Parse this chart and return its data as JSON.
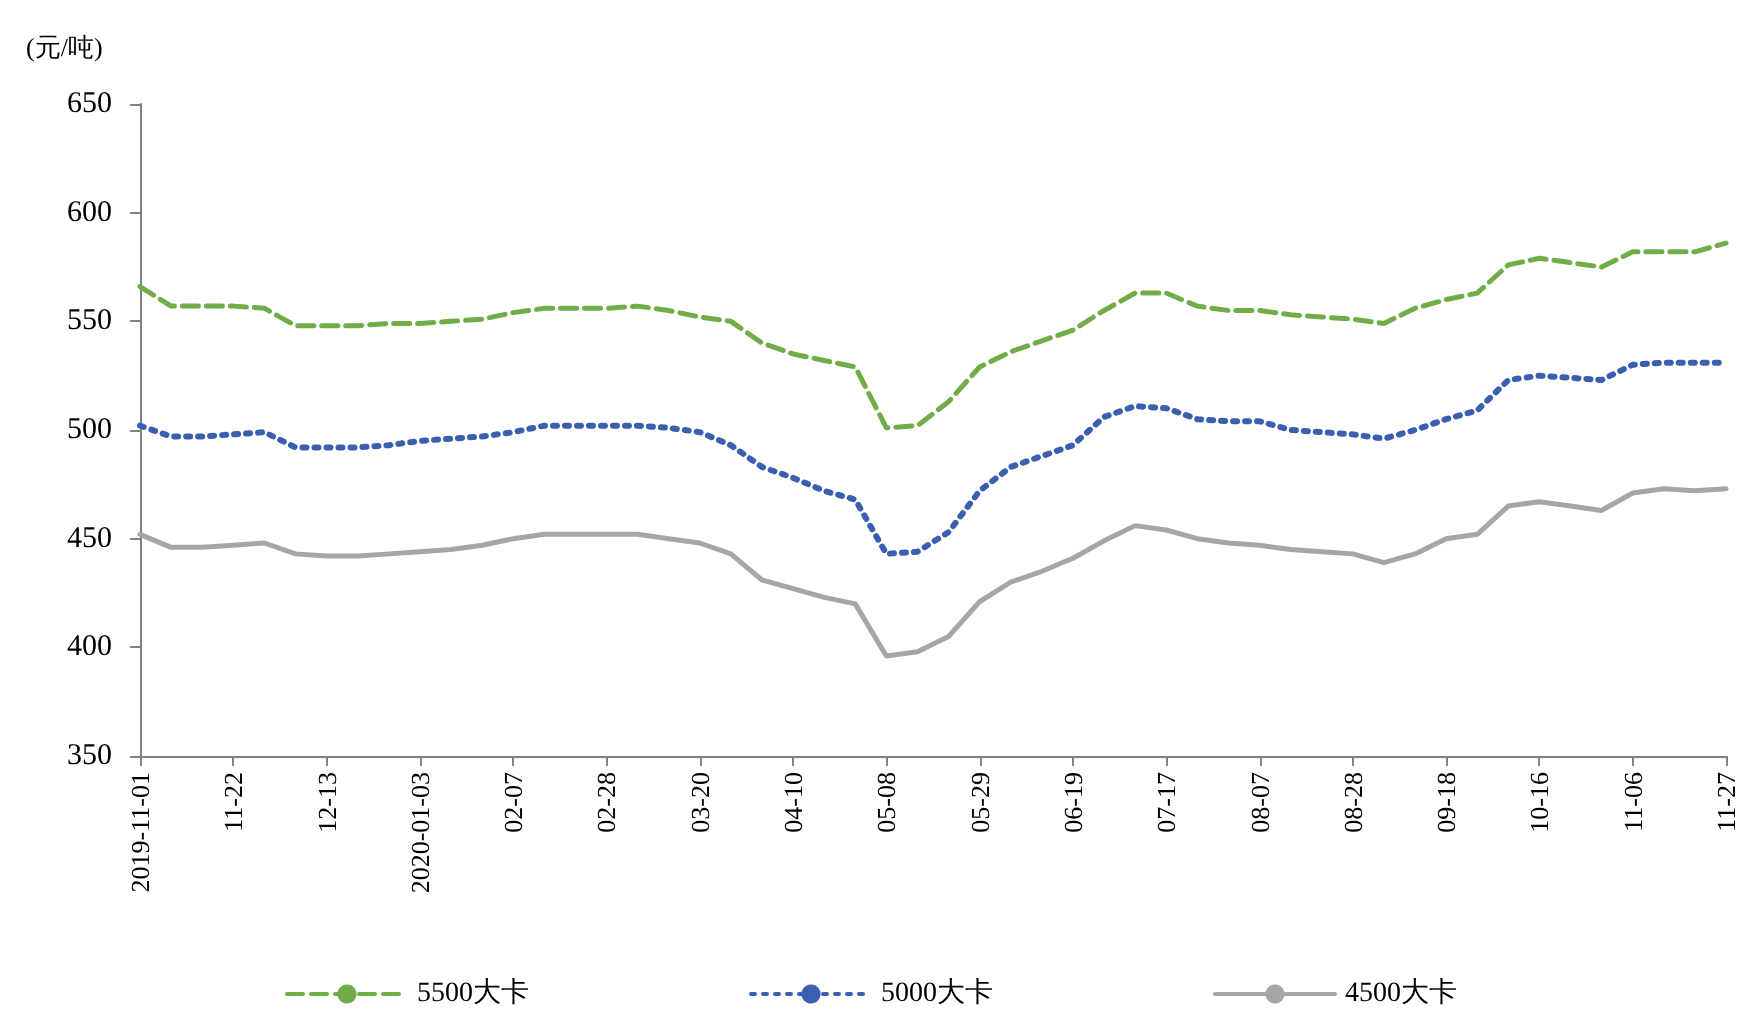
{
  "chart_data": {
    "type": "line",
    "ylabel": "(元/吨)",
    "categories": [
      "2019-11-01",
      null,
      null,
      "11-22",
      null,
      null,
      "12-13",
      null,
      null,
      "2020-01-03",
      null,
      null,
      "02-07",
      null,
      null,
      "02-28",
      null,
      null,
      "03-20",
      null,
      null,
      "04-10",
      null,
      null,
      "05-08",
      null,
      null,
      "05-29",
      null,
      null,
      "06-19",
      null,
      null,
      "07-17",
      null,
      null,
      "08-07",
      null,
      null,
      "08-28",
      null,
      null,
      "09-18",
      null,
      null,
      "10-16",
      null,
      null,
      "11-06",
      null,
      null,
      "11-27"
    ],
    "series": [
      {
        "name": "5500大卡",
        "color": "#70ad47",
        "line_style": "dashed",
        "values": [
          566,
          557,
          557,
          557,
          556,
          548,
          548,
          548,
          549,
          549,
          550,
          551,
          554,
          556,
          556,
          556,
          557,
          555,
          552,
          550,
          540,
          535,
          532,
          529,
          501,
          502,
          513,
          529,
          536,
          541,
          546,
          555,
          563,
          563,
          557,
          555,
          555,
          553,
          552,
          551,
          549,
          556,
          560,
          563,
          576,
          579,
          577,
          575,
          582,
          582,
          582,
          586
        ]
      },
      {
        "name": "5000大卡",
        "color": "#3a5fb0",
        "line_style": "dotted",
        "values": [
          502,
          497,
          497,
          498,
          499,
          492,
          492,
          492,
          493,
          495,
          496,
          497,
          499,
          502,
          502,
          502,
          502,
          501,
          499,
          493,
          483,
          478,
          472,
          468,
          443,
          444,
          453,
          472,
          483,
          488,
          493,
          506,
          511,
          510,
          505,
          504,
          504,
          500,
          499,
          498,
          496,
          500,
          505,
          509,
          523,
          525,
          524,
          523,
          530,
          531,
          531,
          531
        ]
      },
      {
        "name": "4500大卡",
        "color": "#a6a6a6",
        "line_style": "solid",
        "values": [
          452,
          446,
          446,
          447,
          448,
          443,
          442,
          442,
          443,
          444,
          445,
          447,
          450,
          452,
          452,
          452,
          452,
          450,
          448,
          443,
          431,
          427,
          423,
          420,
          396,
          398,
          405,
          421,
          430,
          435,
          441,
          449,
          456,
          454,
          450,
          448,
          447,
          445,
          444,
          443,
          439,
          443,
          450,
          452,
          465,
          467,
          465,
          463,
          471,
          473,
          472,
          473
        ]
      }
    ],
    "ylim": [
      350,
      650
    ],
    "yticks": [
      350,
      400,
      450,
      500,
      550,
      600,
      650
    ],
    "grid": false,
    "legend": "bottom",
    "marker": "none"
  }
}
